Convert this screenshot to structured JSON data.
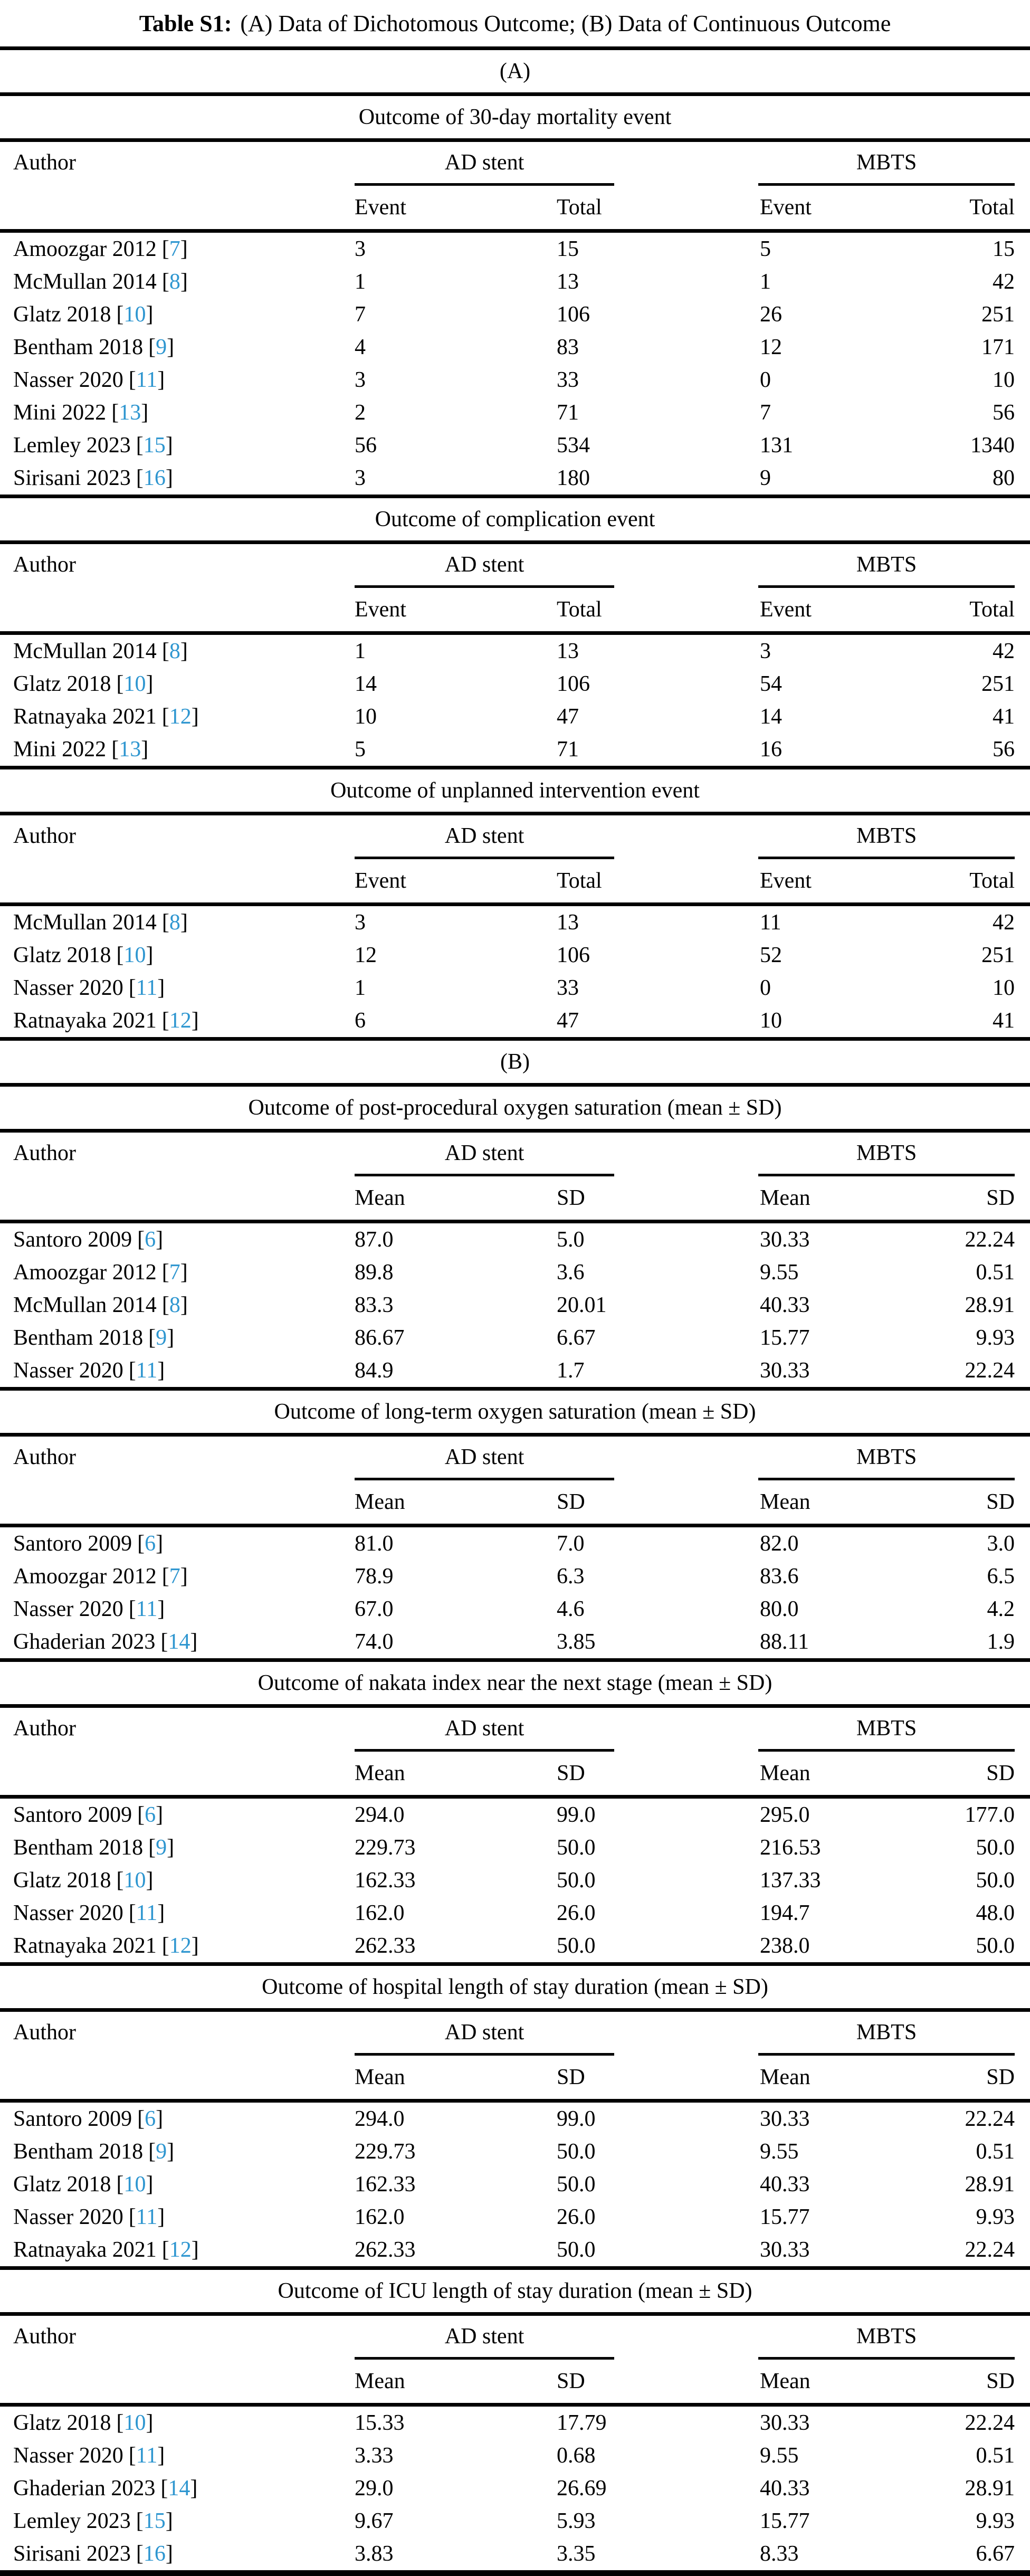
{
  "title": {
    "label": "Table S1:",
    "text": "(A) Data of Dichotomous Outcome; (B) Data of Continuous Outcome"
  },
  "part_labels": {
    "a": "(A)",
    "b": "(B)"
  },
  "header": {
    "author": "Author",
    "group1": "AD stent",
    "group2": "MBTS"
  },
  "citation": {
    "open": "[",
    "close": "]"
  },
  "colors": {
    "citation_link": "#2e96d0",
    "rule": "#000000",
    "text": "#000000",
    "background": "#ffffff"
  },
  "sections": [
    {
      "part": "A",
      "title": "Outcome of 30-day mortality event",
      "columns": [
        "Event",
        "Total",
        "Event",
        "Total"
      ],
      "rows": [
        {
          "author": "Amoozgar 2012",
          "ref": "7",
          "values": [
            "3",
            "15",
            "5",
            "15"
          ]
        },
        {
          "author": "McMullan 2014",
          "ref": "8",
          "values": [
            "1",
            "13",
            "1",
            "42"
          ]
        },
        {
          "author": "Glatz 2018",
          "ref": "10",
          "values": [
            "7",
            "106",
            "26",
            "251"
          ]
        },
        {
          "author": "Bentham 2018",
          "ref": "9",
          "values": [
            "4",
            "83",
            "12",
            "171"
          ]
        },
        {
          "author": "Nasser 2020",
          "ref": "11",
          "values": [
            "3",
            "33",
            "0",
            "10"
          ]
        },
        {
          "author": "Mini 2022",
          "ref": "13",
          "values": [
            "2",
            "71",
            "7",
            "56"
          ]
        },
        {
          "author": "Lemley 2023",
          "ref": "15",
          "values": [
            "56",
            "534",
            "131",
            "1340"
          ]
        },
        {
          "author": "Sirisani 2023",
          "ref": "16",
          "values": [
            "3",
            "180",
            "9",
            "80"
          ]
        }
      ]
    },
    {
      "part": "A",
      "title": "Outcome of complication event",
      "columns": [
        "Event",
        "Total",
        "Event",
        "Total"
      ],
      "rows": [
        {
          "author": "McMullan 2014",
          "ref": "8",
          "values": [
            "1",
            "13",
            "3",
            "42"
          ]
        },
        {
          "author": "Glatz 2018",
          "ref": "10",
          "values": [
            "14",
            "106",
            "54",
            "251"
          ]
        },
        {
          "author": "Ratnayaka 2021",
          "ref": "12",
          "values": [
            "10",
            "47",
            "14",
            "41"
          ]
        },
        {
          "author": "Mini 2022",
          "ref": "13",
          "values": [
            "5",
            "71",
            "16",
            "56"
          ]
        }
      ]
    },
    {
      "part": "A",
      "title": "Outcome of unplanned intervention event",
      "columns": [
        "Event",
        "Total",
        "Event",
        "Total"
      ],
      "rows": [
        {
          "author": "McMullan 2014",
          "ref": "8",
          "values": [
            "3",
            "13",
            "11",
            "42"
          ]
        },
        {
          "author": "Glatz 2018",
          "ref": "10",
          "values": [
            "12",
            "106",
            "52",
            "251"
          ]
        },
        {
          "author": "Nasser 2020",
          "ref": "11",
          "values": [
            "1",
            "33",
            "0",
            "10"
          ]
        },
        {
          "author": "Ratnayaka 2021",
          "ref": "12",
          "values": [
            "6",
            "47",
            "10",
            "41"
          ]
        }
      ]
    },
    {
      "part": "B",
      "title": "Outcome of post-procedural oxygen saturation (mean ± SD)",
      "columns": [
        "Mean",
        "SD",
        "Mean",
        "SD"
      ],
      "rows": [
        {
          "author": "Santoro 2009",
          "ref": "6",
          "values": [
            "87.0",
            "5.0",
            "30.33",
            "22.24"
          ]
        },
        {
          "author": "Amoozgar 2012",
          "ref": "7",
          "values": [
            "89.8",
            "3.6",
            "9.55",
            "0.51"
          ]
        },
        {
          "author": "McMullan 2014",
          "ref": "8",
          "values": [
            "83.3",
            "20.01",
            "40.33",
            "28.91"
          ]
        },
        {
          "author": "Bentham 2018",
          "ref": "9",
          "values": [
            "86.67",
            "6.67",
            "15.77",
            "9.93"
          ]
        },
        {
          "author": "Nasser 2020",
          "ref": "11",
          "values": [
            "84.9",
            "1.7",
            "30.33",
            "22.24"
          ]
        }
      ]
    },
    {
      "part": "B",
      "title": "Outcome of long-term oxygen saturation (mean ± SD)",
      "columns": [
        "Mean",
        "SD",
        "Mean",
        "SD"
      ],
      "rows": [
        {
          "author": "Santoro 2009",
          "ref": "6",
          "values": [
            "81.0",
            "7.0",
            "82.0",
            "3.0"
          ]
        },
        {
          "author": "Amoozgar 2012",
          "ref": "7",
          "values": [
            "78.9",
            "6.3",
            "83.6",
            "6.5"
          ]
        },
        {
          "author": "Nasser 2020",
          "ref": "11",
          "values": [
            "67.0",
            "4.6",
            "80.0",
            "4.2"
          ]
        },
        {
          "author": "Ghaderian 2023",
          "ref": "14",
          "values": [
            "74.0",
            "3.85",
            "88.11",
            "1.9"
          ]
        }
      ]
    },
    {
      "part": "B",
      "title": "Outcome of nakata index near the next stage (mean ± SD)",
      "columns": [
        "Mean",
        "SD",
        "Mean",
        "SD"
      ],
      "rows": [
        {
          "author": "Santoro 2009",
          "ref": "6",
          "values": [
            "294.0",
            "99.0",
            "295.0",
            "177.0"
          ]
        },
        {
          "author": "Bentham 2018",
          "ref": "9",
          "values": [
            "229.73",
            "50.0",
            "216.53",
            "50.0"
          ]
        },
        {
          "author": "Glatz 2018",
          "ref": "10",
          "values": [
            "162.33",
            "50.0",
            "137.33",
            "50.0"
          ]
        },
        {
          "author": "Nasser 2020",
          "ref": "11",
          "values": [
            "162.0",
            "26.0",
            "194.7",
            "48.0"
          ]
        },
        {
          "author": "Ratnayaka 2021",
          "ref": "12",
          "values": [
            "262.33",
            "50.0",
            "238.0",
            "50.0"
          ]
        }
      ]
    },
    {
      "part": "B",
      "title": "Outcome of hospital length of stay duration (mean ± SD)",
      "columns": [
        "Mean",
        "SD",
        "Mean",
        "SD"
      ],
      "rows": [
        {
          "author": "Santoro 2009",
          "ref": "6",
          "values": [
            "294.0",
            "99.0",
            "30.33",
            "22.24"
          ]
        },
        {
          "author": "Bentham 2018",
          "ref": "9",
          "values": [
            "229.73",
            "50.0",
            "9.55",
            "0.51"
          ]
        },
        {
          "author": "Glatz 2018",
          "ref": "10",
          "values": [
            "162.33",
            "50.0",
            "40.33",
            "28.91"
          ]
        },
        {
          "author": "Nasser 2020",
          "ref": "11",
          "values": [
            "162.0",
            "26.0",
            "15.77",
            "9.93"
          ]
        },
        {
          "author": "Ratnayaka 2021",
          "ref": "12",
          "values": [
            "262.33",
            "50.0",
            "30.33",
            "22.24"
          ]
        }
      ]
    },
    {
      "part": "B",
      "title": "Outcome of ICU length of stay duration (mean ± SD)",
      "columns": [
        "Mean",
        "SD",
        "Mean",
        "SD"
      ],
      "rows": [
        {
          "author": "Glatz 2018",
          "ref": "10",
          "values": [
            "15.33",
            "17.79",
            "30.33",
            "22.24"
          ]
        },
        {
          "author": "Nasser 2020",
          "ref": "11",
          "values": [
            "3.33",
            "0.68",
            "9.55",
            "0.51"
          ]
        },
        {
          "author": "Ghaderian 2023",
          "ref": "14",
          "values": [
            "29.0",
            "26.69",
            "40.33",
            "28.91"
          ]
        },
        {
          "author": "Lemley 2023",
          "ref": "15",
          "values": [
            "9.67",
            "5.93",
            "15.77",
            "9.93"
          ]
        },
        {
          "author": "Sirisani 2023",
          "ref": "16",
          "values": [
            "3.83",
            "3.35",
            "8.33",
            "6.67"
          ]
        }
      ]
    }
  ]
}
